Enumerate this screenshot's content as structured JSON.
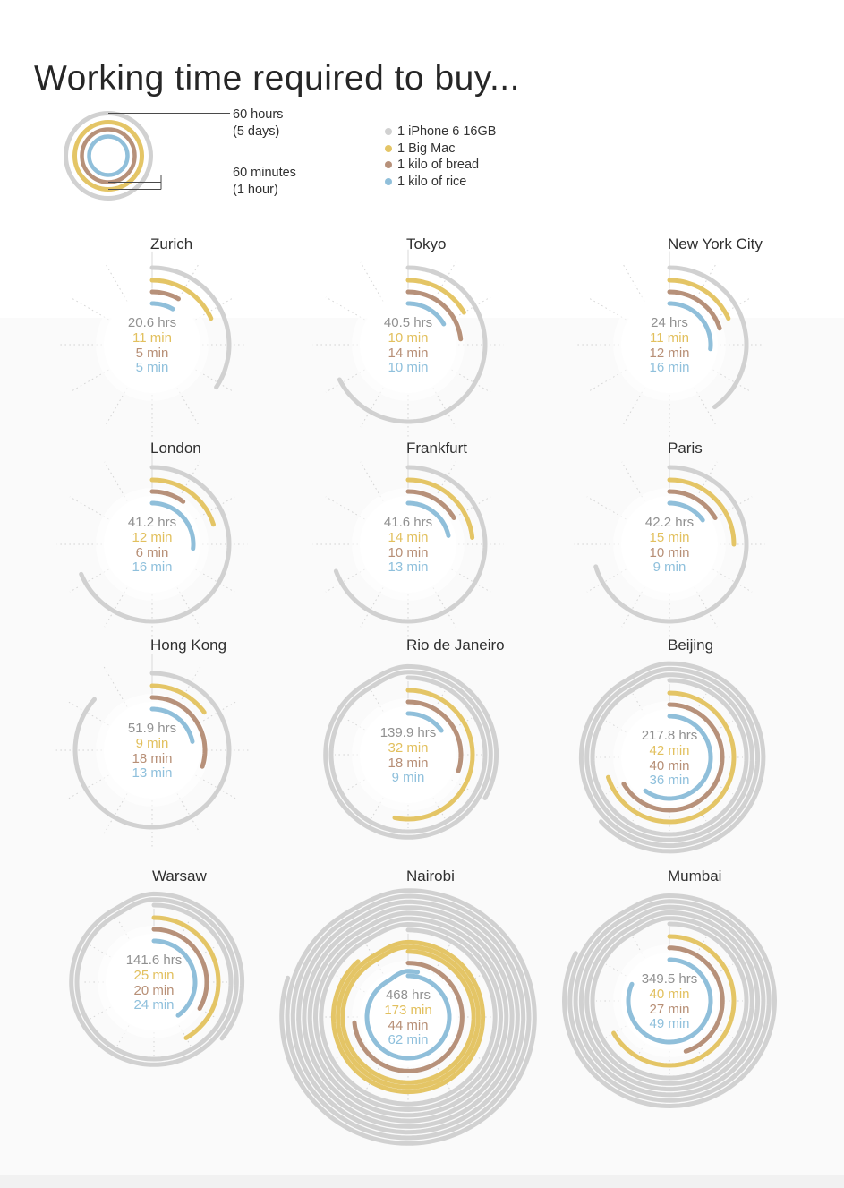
{
  "page": {
    "title": "Working time required to buy..."
  },
  "scale_legend": {
    "outer_label": "60 hours",
    "outer_sublabel": "(5 days)",
    "inner_label": "60 minutes",
    "inner_sublabel": "(1 hour)"
  },
  "legend": {
    "items": [
      {
        "key": "iphone",
        "label": "1 iPhone 6 16GB",
        "color": "#d1d1d1"
      },
      {
        "key": "bigmac",
        "label": "1 Big Mac",
        "color": "#e4c566"
      },
      {
        "key": "bread",
        "label": "1 kilo of bread",
        "color": "#b7917a"
      },
      {
        "key": "rice",
        "label": "1 kilo of rice",
        "color": "#90bfda"
      }
    ]
  },
  "colors": {
    "iphone_arc": "#d1d1d1",
    "bigmac_arc": "#e4c566",
    "bread_arc": "#b7917a",
    "rice_arc": "#90bfda",
    "hours_text": "#919191",
    "bigmac_text": "#e2c05e",
    "bread_text": "#b78f76",
    "rice_text": "#8fc0dc",
    "spoke": "#d4d4d4",
    "city_title": "#303030"
  },
  "chart_data": {
    "type": "radial-spiral-bar",
    "title": "Working time required to buy...",
    "scale": {
      "units_per_ring": 60,
      "iphone_unit": "hours",
      "other_units": "minutes",
      "ring_note": "one full turn = 60 hours for iPhone spiral, 60 minutes for the other arcs"
    },
    "series_names": [
      "1 iPhone 6 16GB (hours)",
      "1 Big Mac (minutes)",
      "1 kilo of bread (minutes)",
      "1 kilo of rice (minutes)"
    ],
    "cities": [
      {
        "name": "Zurich",
        "iphone_hrs": 20.6,
        "bigmac_min": 11,
        "bread_min": 5,
        "rice_min": 5,
        "labels": [
          "20.6 hrs",
          "11 min",
          "5 min",
          "5 min"
        ]
      },
      {
        "name": "Tokyo",
        "iphone_hrs": 40.5,
        "bigmac_min": 10,
        "bread_min": 14,
        "rice_min": 10,
        "labels": [
          "40.5 hrs",
          "10 min",
          "14 min",
          "10 min"
        ]
      },
      {
        "name": "New York City",
        "iphone_hrs": 24,
        "bigmac_min": 11,
        "bread_min": 12,
        "rice_min": 16,
        "labels": [
          "24 hrs",
          "11 min",
          "12 min",
          "16 min"
        ]
      },
      {
        "name": "London",
        "iphone_hrs": 41.2,
        "bigmac_min": 12,
        "bread_min": 6,
        "rice_min": 16,
        "labels": [
          "41.2 hrs",
          "12 min",
          "6 min",
          "16 min"
        ]
      },
      {
        "name": "Frankfurt",
        "iphone_hrs": 41.6,
        "bigmac_min": 14,
        "bread_min": 10,
        "rice_min": 13,
        "labels": [
          "41.6 hrs",
          "14 min",
          "10 min",
          "13 min"
        ]
      },
      {
        "name": "Paris",
        "iphone_hrs": 42.2,
        "bigmac_min": 15,
        "bread_min": 10,
        "rice_min": 9,
        "labels": [
          "42.2 hrs",
          "15 min",
          "10 min",
          "9 min"
        ]
      },
      {
        "name": "Hong Kong",
        "iphone_hrs": 51.9,
        "bigmac_min": 9,
        "bread_min": 18,
        "rice_min": 13,
        "labels": [
          "51.9 hrs",
          "9 min",
          "18 min",
          "13 min"
        ]
      },
      {
        "name": "Rio de Janeiro",
        "iphone_hrs": 139.9,
        "bigmac_min": 32,
        "bread_min": 18,
        "rice_min": 9,
        "labels": [
          "139.9 hrs",
          "32 min",
          "18 min",
          "9 min"
        ]
      },
      {
        "name": "Beijing",
        "iphone_hrs": 217.8,
        "bigmac_min": 42,
        "bread_min": 40,
        "rice_min": 36,
        "labels": [
          "217.8 hrs",
          "42 min",
          "40 min",
          "36 min"
        ]
      },
      {
        "name": "Warsaw",
        "iphone_hrs": 141.6,
        "bigmac_min": 25,
        "bread_min": 20,
        "rice_min": 24,
        "labels": [
          "141.6 hrs",
          "25 min",
          "20 min",
          "24 min"
        ]
      },
      {
        "name": "Nairobi",
        "iphone_hrs": 468,
        "bigmac_min": 173,
        "bread_min": 44,
        "rice_min": 62,
        "labels": [
          "468 hrs",
          "173 min",
          "44 min",
          "62 min"
        ]
      },
      {
        "name": "Mumbai",
        "iphone_hrs": 349.5,
        "bigmac_min": 40,
        "bread_min": 27,
        "rice_min": 49,
        "labels": [
          "349.5 hrs",
          "40 min",
          "27 min",
          "49 min"
        ]
      }
    ]
  }
}
